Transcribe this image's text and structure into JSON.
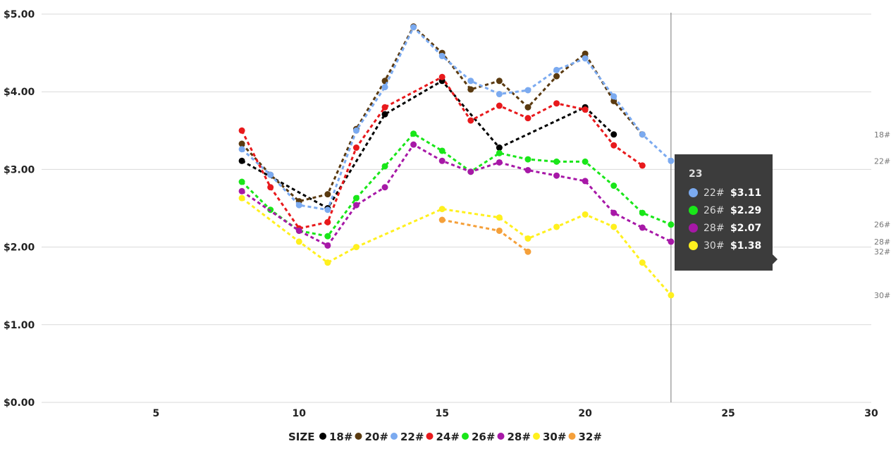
{
  "chart_data": {
    "type": "line",
    "xlim": [
      1,
      30
    ],
    "ylim": [
      0,
      5
    ],
    "x_ticks": [
      5,
      10,
      15,
      20,
      25,
      30
    ],
    "y_ticks": [
      0,
      1,
      2,
      3,
      4,
      5
    ],
    "y_tick_labels": [
      "$0.00",
      "$1.00",
      "$2.00",
      "$3.00",
      "$4.00",
      "$5.00"
    ],
    "grid": true,
    "legend_title": "SIZE",
    "legend_position": "bottom",
    "series": [
      {
        "name": "18#",
        "color": "#000000",
        "points": [
          [
            8,
            3.11
          ],
          [
            11,
            2.5
          ],
          [
            13,
            3.71
          ],
          [
            15,
            4.14
          ],
          [
            17,
            3.28
          ],
          [
            20,
            3.8
          ],
          [
            21,
            3.45
          ]
        ]
      },
      {
        "name": "20#",
        "color": "#5a3a10",
        "points": [
          [
            8,
            3.33
          ],
          [
            9,
            2.93
          ],
          [
            10,
            2.59
          ],
          [
            11,
            2.68
          ],
          [
            12,
            3.52
          ],
          [
            13,
            4.14
          ],
          [
            14,
            4.84
          ],
          [
            15,
            4.5
          ],
          [
            16,
            4.03
          ],
          [
            17,
            4.14
          ],
          [
            18,
            3.8
          ],
          [
            19,
            4.2
          ],
          [
            20,
            4.49
          ],
          [
            21,
            3.88
          ],
          [
            22,
            3.45
          ]
        ]
      },
      {
        "name": "22#",
        "color": "#7baaf0",
        "points": [
          [
            8,
            3.26
          ],
          [
            9,
            2.93
          ],
          [
            10,
            2.54
          ],
          [
            11,
            2.48
          ],
          [
            12,
            3.5
          ],
          [
            13,
            4.06
          ],
          [
            14,
            4.83
          ],
          [
            15,
            4.46
          ],
          [
            16,
            4.14
          ],
          [
            17,
            3.97
          ],
          [
            18,
            4.02
          ],
          [
            19,
            4.28
          ],
          [
            20,
            4.43
          ],
          [
            21,
            3.94
          ],
          [
            22,
            3.45
          ],
          [
            23,
            3.11
          ]
        ]
      },
      {
        "name": "24#",
        "color": "#e8191c",
        "points": [
          [
            8,
            3.5
          ],
          [
            9,
            2.77
          ],
          [
            10,
            2.24
          ],
          [
            11,
            2.32
          ],
          [
            12,
            3.28
          ],
          [
            13,
            3.8
          ],
          [
            15,
            4.19
          ],
          [
            16,
            3.63
          ],
          [
            17,
            3.82
          ],
          [
            18,
            3.66
          ],
          [
            19,
            3.85
          ],
          [
            20,
            3.77
          ],
          [
            21,
            3.31
          ],
          [
            22,
            3.05
          ]
        ]
      },
      {
        "name": "26#",
        "color": "#19e619",
        "points": [
          [
            8,
            2.84
          ],
          [
            9,
            2.48
          ],
          [
            10,
            2.21
          ],
          [
            11,
            2.14
          ],
          [
            12,
            2.63
          ],
          [
            13,
            3.04
          ],
          [
            14,
            3.46
          ],
          [
            15,
            3.24
          ],
          [
            16,
            2.97
          ],
          [
            17,
            3.21
          ],
          [
            18,
            3.13
          ],
          [
            19,
            3.1
          ],
          [
            20,
            3.1
          ],
          [
            21,
            2.79
          ],
          [
            22,
            2.44
          ],
          [
            23,
            2.29
          ]
        ]
      },
      {
        "name": "28#",
        "color": "#a718a7",
        "points": [
          [
            8,
            2.72
          ],
          [
            10,
            2.21
          ],
          [
            11,
            2.02
          ],
          [
            12,
            2.54
          ],
          [
            13,
            2.77
          ],
          [
            14,
            3.32
          ],
          [
            15,
            3.11
          ],
          [
            16,
            2.97
          ],
          [
            17,
            3.09
          ],
          [
            18,
            2.99
          ],
          [
            19,
            2.92
          ],
          [
            20,
            2.85
          ],
          [
            21,
            2.44
          ],
          [
            22,
            2.25
          ],
          [
            23,
            2.07
          ]
        ]
      },
      {
        "name": "30#",
        "color": "#fff01e",
        "points": [
          [
            8,
            2.63
          ],
          [
            10,
            2.07
          ],
          [
            11,
            1.8
          ],
          [
            12,
            2.0
          ],
          [
            15,
            2.49
          ],
          [
            17,
            2.38
          ],
          [
            18,
            2.11
          ],
          [
            19,
            2.26
          ],
          [
            20,
            2.42
          ],
          [
            21,
            2.26
          ],
          [
            22,
            1.8
          ],
          [
            23,
            1.38
          ]
        ]
      },
      {
        "name": "32#",
        "color": "#f5a03a",
        "points": [
          [
            15,
            2.35
          ],
          [
            17,
            2.21
          ],
          [
            18,
            1.94
          ]
        ]
      }
    ],
    "end_labels": [
      {
        "name": "18#",
        "y": 3.45
      },
      {
        "name": "22#",
        "y": 3.11
      },
      {
        "name": "26#",
        "y": 2.29
      },
      {
        "name": "28#",
        "y": 2.07
      },
      {
        "name": "32#",
        "y": 1.94
      },
      {
        "name": "30#",
        "y": 1.38
      }
    ],
    "hover_x": 23
  },
  "tooltip": {
    "x_label": "23",
    "rows": [
      {
        "name": "22#",
        "value": "$3.11",
        "color": "#7baaf0"
      },
      {
        "name": "26#",
        "value": "$2.29",
        "color": "#19e619"
      },
      {
        "name": "28#",
        "value": "$2.07",
        "color": "#a718a7"
      },
      {
        "name": "30#",
        "value": "$1.38",
        "color": "#fff01e"
      }
    ]
  }
}
